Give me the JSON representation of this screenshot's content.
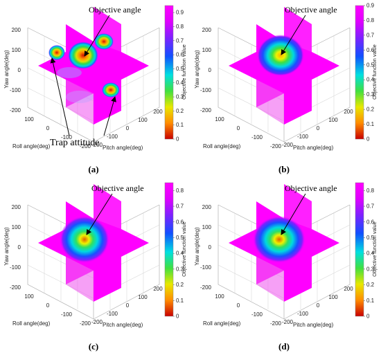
{
  "chart_data": [
    {
      "type": "heatmap",
      "caption": "(a)",
      "xlabel": "Roll angle(deg)",
      "ylabel": "Pitch angle(deg)",
      "zlabel": "Yaw angle(deg)",
      "colorbar_label": "Objective function value",
      "colorbar_range": [
        0,
        0.95
      ],
      "colorbar_ticks": [
        "0",
        "0.1",
        "0.2",
        "0.3",
        "0.4",
        "0.5",
        "0.6",
        "0.7",
        "0.8",
        "0.9"
      ],
      "x_ticks": [
        "100",
        "0",
        "-100",
        "-200"
      ],
      "y_ticks": [
        "-200",
        "-100",
        "0",
        "100",
        "200"
      ],
      "z_ticks": [
        "200",
        "100",
        "0",
        "-100",
        "-200"
      ],
      "annotations": [
        "Objective angle",
        "Trap attitude"
      ]
    },
    {
      "type": "heatmap",
      "caption": "(b)",
      "xlabel": "Roll angle(deg)",
      "ylabel": "Pitch angle(deg)",
      "zlabel": "Yaw angle(deg)",
      "colorbar_label": "Objective function value",
      "colorbar_range": [
        0,
        0.9
      ],
      "colorbar_ticks": [
        "0",
        "0.1",
        "0.2",
        "0.3",
        "0.4",
        "0.5",
        "0.6",
        "0.7",
        "0.8",
        "0.9"
      ],
      "x_ticks": [
        "100",
        "0",
        "-100",
        "-200"
      ],
      "y_ticks": [
        "-200",
        "-100",
        "0",
        "100",
        "200"
      ],
      "z_ticks": [
        "200",
        "100",
        "0",
        "-100",
        "-200"
      ],
      "annotations": [
        "Objective angle"
      ]
    },
    {
      "type": "heatmap",
      "caption": "(c)",
      "xlabel": "Roll angle(deg)",
      "ylabel": "Pitch angle(deg)",
      "zlabel": "Yaw angle(deg)",
      "colorbar_label": "Objective function value",
      "colorbar_range": [
        0,
        0.85
      ],
      "colorbar_ticks": [
        "0",
        "0.1",
        "0.2",
        "0.3",
        "0.4",
        "0.5",
        "0.6",
        "0.7",
        "0.8"
      ],
      "x_ticks": [
        "100",
        "0",
        "-100",
        "-200"
      ],
      "y_ticks": [
        "-200",
        "-100",
        "0",
        "100",
        "200"
      ],
      "z_ticks": [
        "200",
        "100",
        "0",
        "-100",
        "-200"
      ],
      "annotations": [
        "Objective angle"
      ]
    },
    {
      "type": "heatmap",
      "caption": "(d)",
      "xlabel": "Roll angle(deg)",
      "ylabel": "Pitch angle(deg)",
      "zlabel": "Yaw angle(deg)",
      "colorbar_label": "Objective function value",
      "colorbar_range": [
        0,
        0.85
      ],
      "colorbar_ticks": [
        "0",
        "0.1",
        "0.2",
        "0.3",
        "0.4",
        "0.5",
        "0.6",
        "0.7",
        "0.8"
      ],
      "x_ticks": [
        "100",
        "0",
        "-100",
        "-200"
      ],
      "y_ticks": [
        "-200",
        "-100",
        "0",
        "100",
        "200"
      ],
      "z_ticks": [
        "200",
        "100",
        "0",
        "-100",
        "-200"
      ],
      "annotations": [
        "Objective angle"
      ]
    }
  ]
}
